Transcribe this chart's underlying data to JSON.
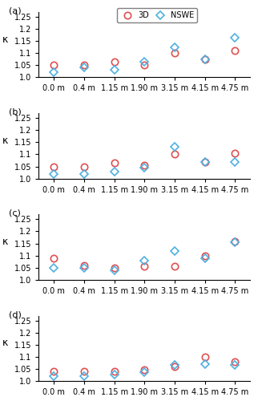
{
  "x_labels": [
    "0.0 m",
    "0.4 m",
    "1.15 m",
    "1.90 m",
    "3.15 m",
    "4.15 m",
    "4.75 m"
  ],
  "x_positions": [
    0,
    1,
    2,
    3,
    4,
    5,
    6
  ],
  "subplots": [
    {
      "label": "(a)",
      "show_legend": true,
      "data_3D": [
        1.05,
        1.05,
        1.065,
        1.05,
        1.1,
        1.075,
        1.11
      ],
      "data_NSWE": [
        1.02,
        1.04,
        1.03,
        1.065,
        1.125,
        1.075,
        1.165
      ]
    },
    {
      "label": "(b)",
      "show_legend": false,
      "data_3D": [
        1.05,
        1.05,
        1.065,
        1.055,
        1.1,
        1.07,
        1.105
      ],
      "data_NSWE": [
        1.02,
        1.02,
        1.03,
        1.045,
        1.13,
        1.07,
        1.07
      ]
    },
    {
      "label": "(c)",
      "show_legend": false,
      "data_3D": [
        1.09,
        1.06,
        1.05,
        1.055,
        1.055,
        1.1,
        1.16
      ],
      "data_NSWE": [
        1.05,
        1.05,
        1.04,
        1.08,
        1.12,
        1.09,
        1.155
      ]
    },
    {
      "label": "(d)",
      "show_legend": false,
      "data_3D": [
        1.04,
        1.04,
        1.04,
        1.045,
        1.06,
        1.1,
        1.08
      ],
      "data_NSWE": [
        1.02,
        1.02,
        1.025,
        1.035,
        1.065,
        1.07,
        1.065
      ]
    }
  ],
  "ylim": [
    1.0,
    1.27
  ],
  "yticks": [
    1.0,
    1.05,
    1.1,
    1.15,
    1.2,
    1.25
  ],
  "color_3D": "#e05050",
  "color_NSWE": "#50b0e0",
  "ylabel": "κ",
  "marker_3D": "o",
  "marker_NSWE": "D",
  "markersize_3D": 6,
  "markersize_NSWE": 5
}
